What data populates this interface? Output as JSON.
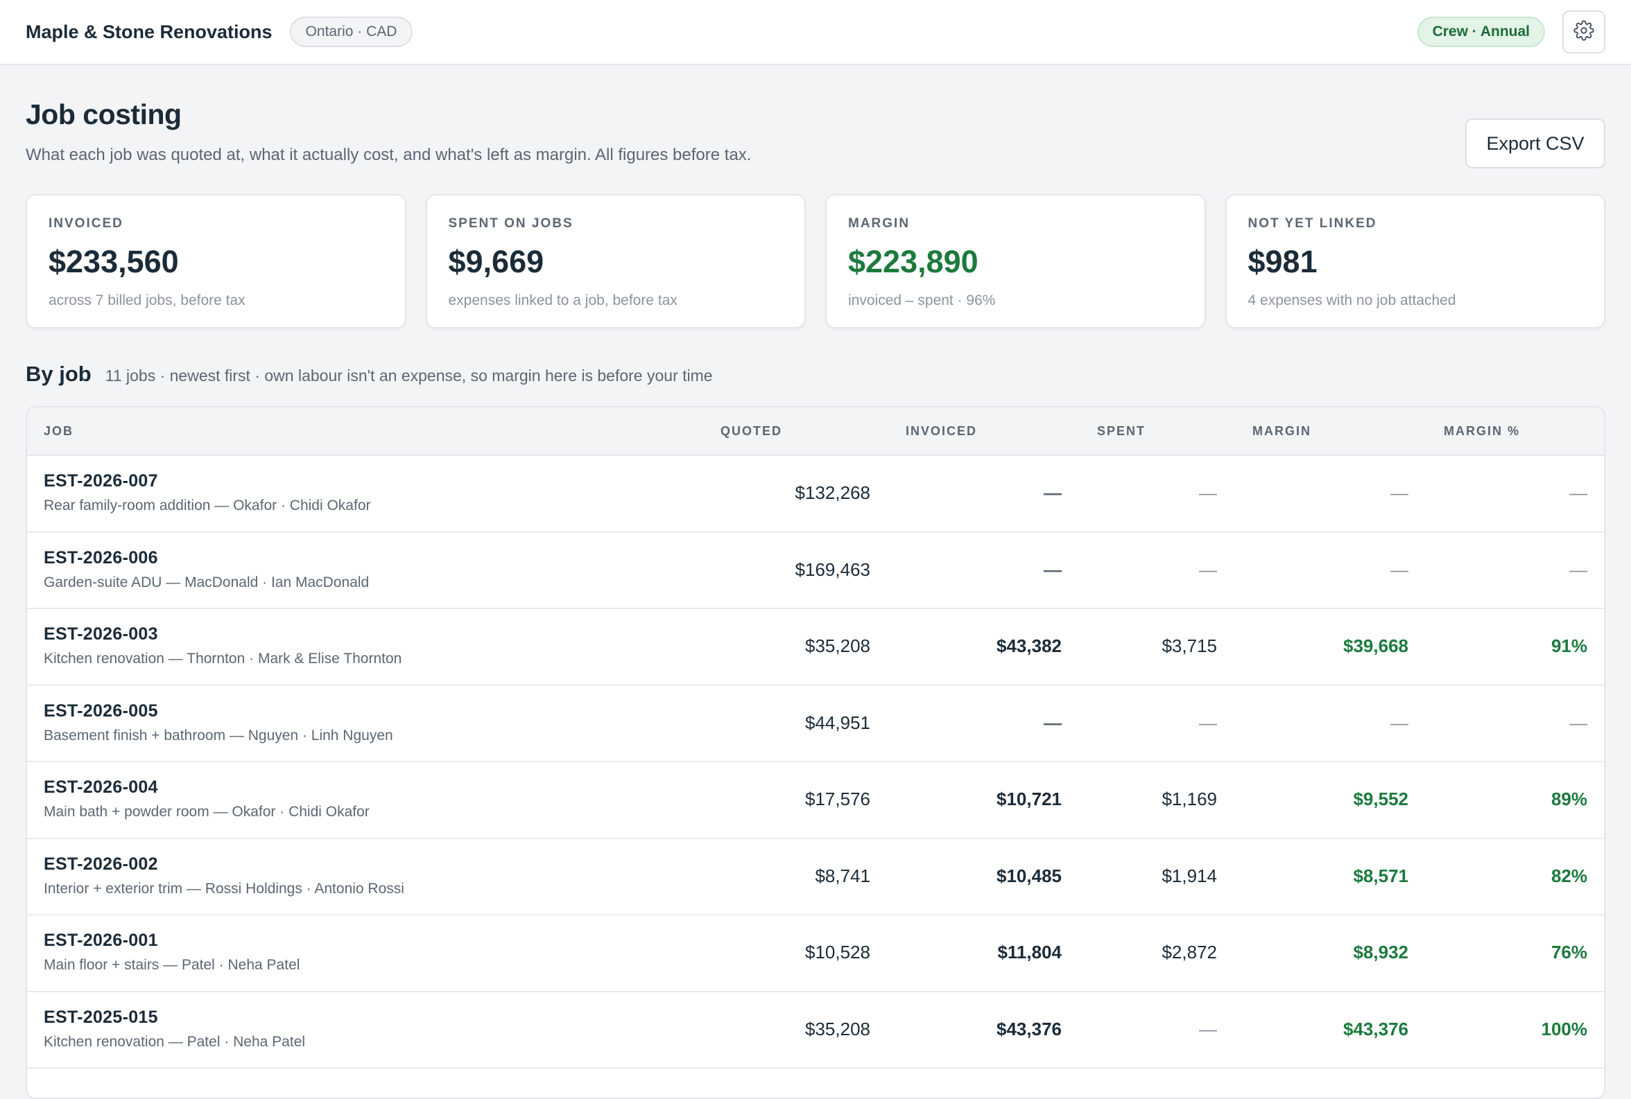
{
  "header": {
    "brand": "Maple & Stone Renovations",
    "region": "Ontario · CAD",
    "plan": "Crew · Annual",
    "settings_icon": "gear-icon"
  },
  "page": {
    "title": "Job costing",
    "subtitle": "What each job was quoted at, what it actually cost, and what's left as margin. All figures before tax.",
    "export_label": "Export CSV"
  },
  "cards": [
    {
      "label": "INVOICED",
      "value": "$233,560",
      "note": "across 7 billed jobs, before tax",
      "accent": "#1b2b38"
    },
    {
      "label": "SPENT ON JOBS",
      "value": "$9,669",
      "note": "expenses linked to a job, before tax",
      "accent": "#1b2b38"
    },
    {
      "label": "MARGIN",
      "value": "$223,890",
      "note": "invoiced – spent · 96%",
      "accent": "#1c7a3d"
    },
    {
      "label": "NOT YET LINKED",
      "value": "$981",
      "note": "4 expenses with no job attached",
      "accent": "#1b2b38"
    }
  ],
  "section": {
    "title": "By job",
    "note": "11 jobs · newest first · own labour isn't an expense, so margin here is before your time"
  },
  "table": {
    "columns": [
      "JOB",
      "QUOTED",
      "INVOICED",
      "SPENT",
      "MARGIN",
      "MARGIN %"
    ],
    "rows": [
      {
        "id": "EST-2026-007",
        "desc": "Rear family-room addition — Okafor · Chidi Okafor",
        "quoted": "$132,268",
        "invoiced": "—",
        "spent": "—",
        "margin": "—",
        "pct": "—"
      },
      {
        "id": "EST-2026-006",
        "desc": "Garden-suite ADU — MacDonald · Ian MacDonald",
        "quoted": "$169,463",
        "invoiced": "—",
        "spent": "—",
        "margin": "—",
        "pct": "—"
      },
      {
        "id": "EST-2026-003",
        "desc": "Kitchen renovation — Thornton · Mark & Elise Thornton",
        "quoted": "$35,208",
        "invoiced": "$43,382",
        "spent": "$3,715",
        "margin": "$39,668",
        "pct": "91%"
      },
      {
        "id": "EST-2026-005",
        "desc": "Basement finish + bathroom — Nguyen · Linh Nguyen",
        "quoted": "$44,951",
        "invoiced": "—",
        "spent": "—",
        "margin": "—",
        "pct": "—"
      },
      {
        "id": "EST-2026-004",
        "desc": "Main bath + powder room — Okafor · Chidi Okafor",
        "quoted": "$17,576",
        "invoiced": "$10,721",
        "spent": "$1,169",
        "margin": "$9,552",
        "pct": "89%"
      },
      {
        "id": "EST-2026-002",
        "desc": "Interior + exterior trim — Rossi Holdings · Antonio Rossi",
        "quoted": "$8,741",
        "invoiced": "$10,485",
        "spent": "$1,914",
        "margin": "$8,571",
        "pct": "82%"
      },
      {
        "id": "EST-2026-001",
        "desc": "Main floor + stairs — Patel · Neha Patel",
        "quoted": "$10,528",
        "invoiced": "$11,804",
        "spent": "$2,872",
        "margin": "$8,932",
        "pct": "76%"
      },
      {
        "id": "EST-2025-015",
        "desc": "Kitchen renovation — Patel · Neha Patel",
        "quoted": "$35,208",
        "invoiced": "$43,376",
        "spent": "—",
        "margin": "$43,376",
        "pct": "100%"
      }
    ]
  }
}
